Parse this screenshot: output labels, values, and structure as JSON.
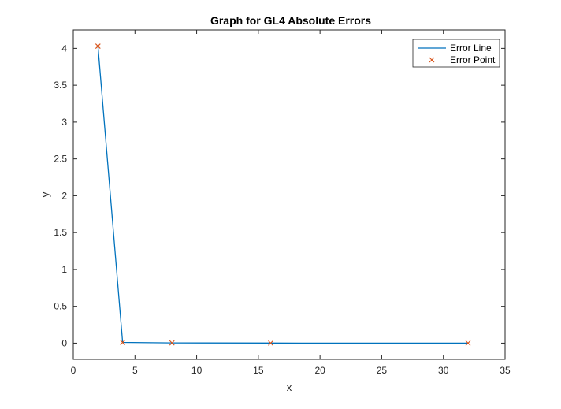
{
  "chart_data": {
    "type": "line",
    "title": "Graph for GL4 Absolute Errors",
    "xlabel": "x",
    "ylabel": "y",
    "xlim": [
      0,
      35
    ],
    "ylim": [
      -0.22,
      4.25
    ],
    "xticks": [
      0,
      5,
      10,
      15,
      20,
      25,
      30,
      35
    ],
    "xtick_labels": [
      "0",
      "5",
      "10",
      "15",
      "20",
      "25",
      "30",
      "35"
    ],
    "yticks": [
      0,
      0.5,
      1,
      1.5,
      2,
      2.5,
      3,
      3.5,
      4
    ],
    "ytick_labels": [
      "0",
      "0.5",
      "1",
      "1.5",
      "2",
      "2.5",
      "3",
      "3.5",
      "4"
    ],
    "grid": false,
    "legend_position": "top-right",
    "series": [
      {
        "name": "Error Line",
        "style": "line",
        "color": "#0072BD",
        "x": [
          2,
          4,
          8,
          16,
          32
        ],
        "y": [
          4.03,
          0.01,
          0.003,
          0.001,
          0.0005
        ]
      },
      {
        "name": "Error Point",
        "style": "marker-x",
        "color": "#D95319",
        "x": [
          2,
          4,
          8,
          16,
          32
        ],
        "y": [
          4.03,
          0.01,
          0.003,
          0.001,
          0.0005
        ]
      }
    ]
  }
}
